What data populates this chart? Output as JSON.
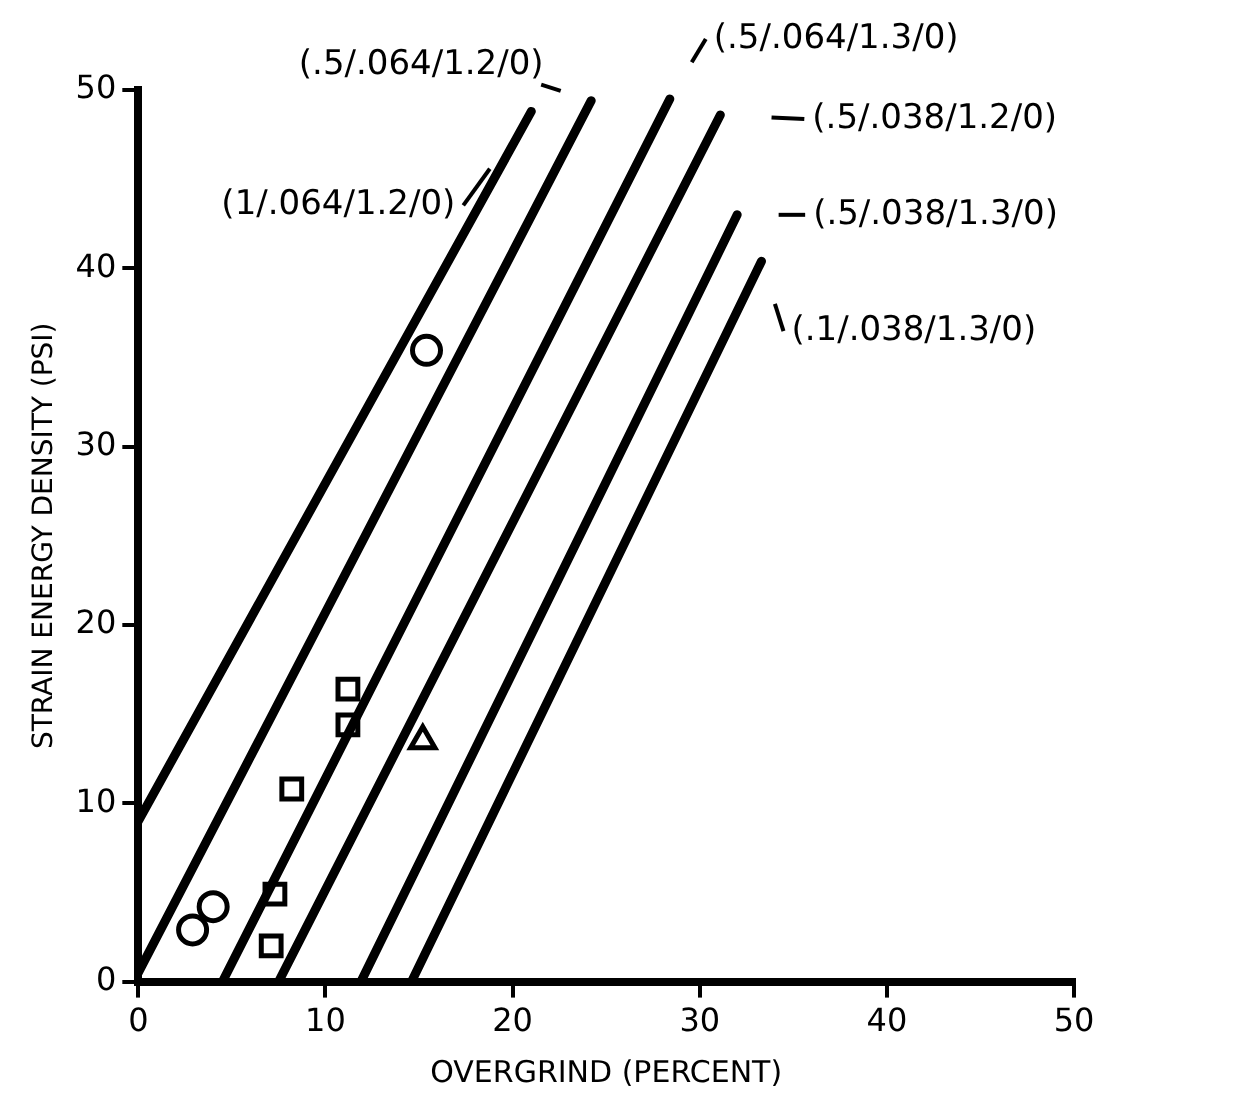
{
  "chart_data": {
    "type": "line",
    "xlabel": "OVERGRIND (PERCENT)",
    "ylabel": "STRAIN ENERGY DENSITY (PSI)",
    "xlim": [
      0,
      50
    ],
    "ylim": [
      0,
      50
    ],
    "xticks": [
      0,
      10,
      20,
      30,
      40,
      50
    ],
    "yticks": [
      0,
      10,
      20,
      30,
      40,
      50
    ],
    "grid": false,
    "legend": "top right",
    "series": [
      {
        "name": "(1/.064/1.2/0)",
        "color": "#000000",
        "marker": "none",
        "x": [
          0,
          21
        ],
        "values": [
          9,
          48.8
        ]
      },
      {
        "name": "(.5/.064/1.2/0)",
        "color": "#000000",
        "marker": "none",
        "x": [
          0,
          24.2
        ],
        "values": [
          0.5,
          49.4
        ]
      },
      {
        "name": "(.5/.064/1.3/0)",
        "color": "#000000",
        "marker": "none",
        "x": [
          4.5,
          28.4
        ],
        "values": [
          0,
          49.5
        ]
      },
      {
        "name": "(.5/.038/1.2/0)",
        "color": "#000000",
        "marker": "none",
        "x": [
          7.5,
          31.1
        ],
        "values": [
          0,
          48.6
        ]
      },
      {
        "name": "(.5/.038/1.3/0)",
        "color": "#000000",
        "marker": "none",
        "x": [
          11.9,
          32
        ],
        "values": [
          0,
          43
        ]
      },
      {
        "name": "(.1/.038/1.3/0)",
        "color": "#000000",
        "marker": "none",
        "x": [
          14.6,
          33.3
        ],
        "values": [
          0,
          40.4
        ]
      },
      {
        "type": "scatter",
        "color": "#000000",
        "marker": "circle",
        "x": [
          15.4,
          2.9,
          4
        ],
        "values": [
          35.4,
          2.9,
          4.2
        ]
      },
      {
        "type": "scatter",
        "color": "#000000",
        "marker": "square",
        "x": [
          11.2,
          11.2,
          8.2,
          7.3,
          7.1
        ],
        "values": [
          16.4,
          14.4,
          10.8,
          4.9,
          2
        ]
      },
      {
        "type": "scatter",
        "color": "#000000",
        "marker": "triangle",
        "x": [
          15.2
        ],
        "values": [
          13.5
        ]
      }
    ]
  }
}
